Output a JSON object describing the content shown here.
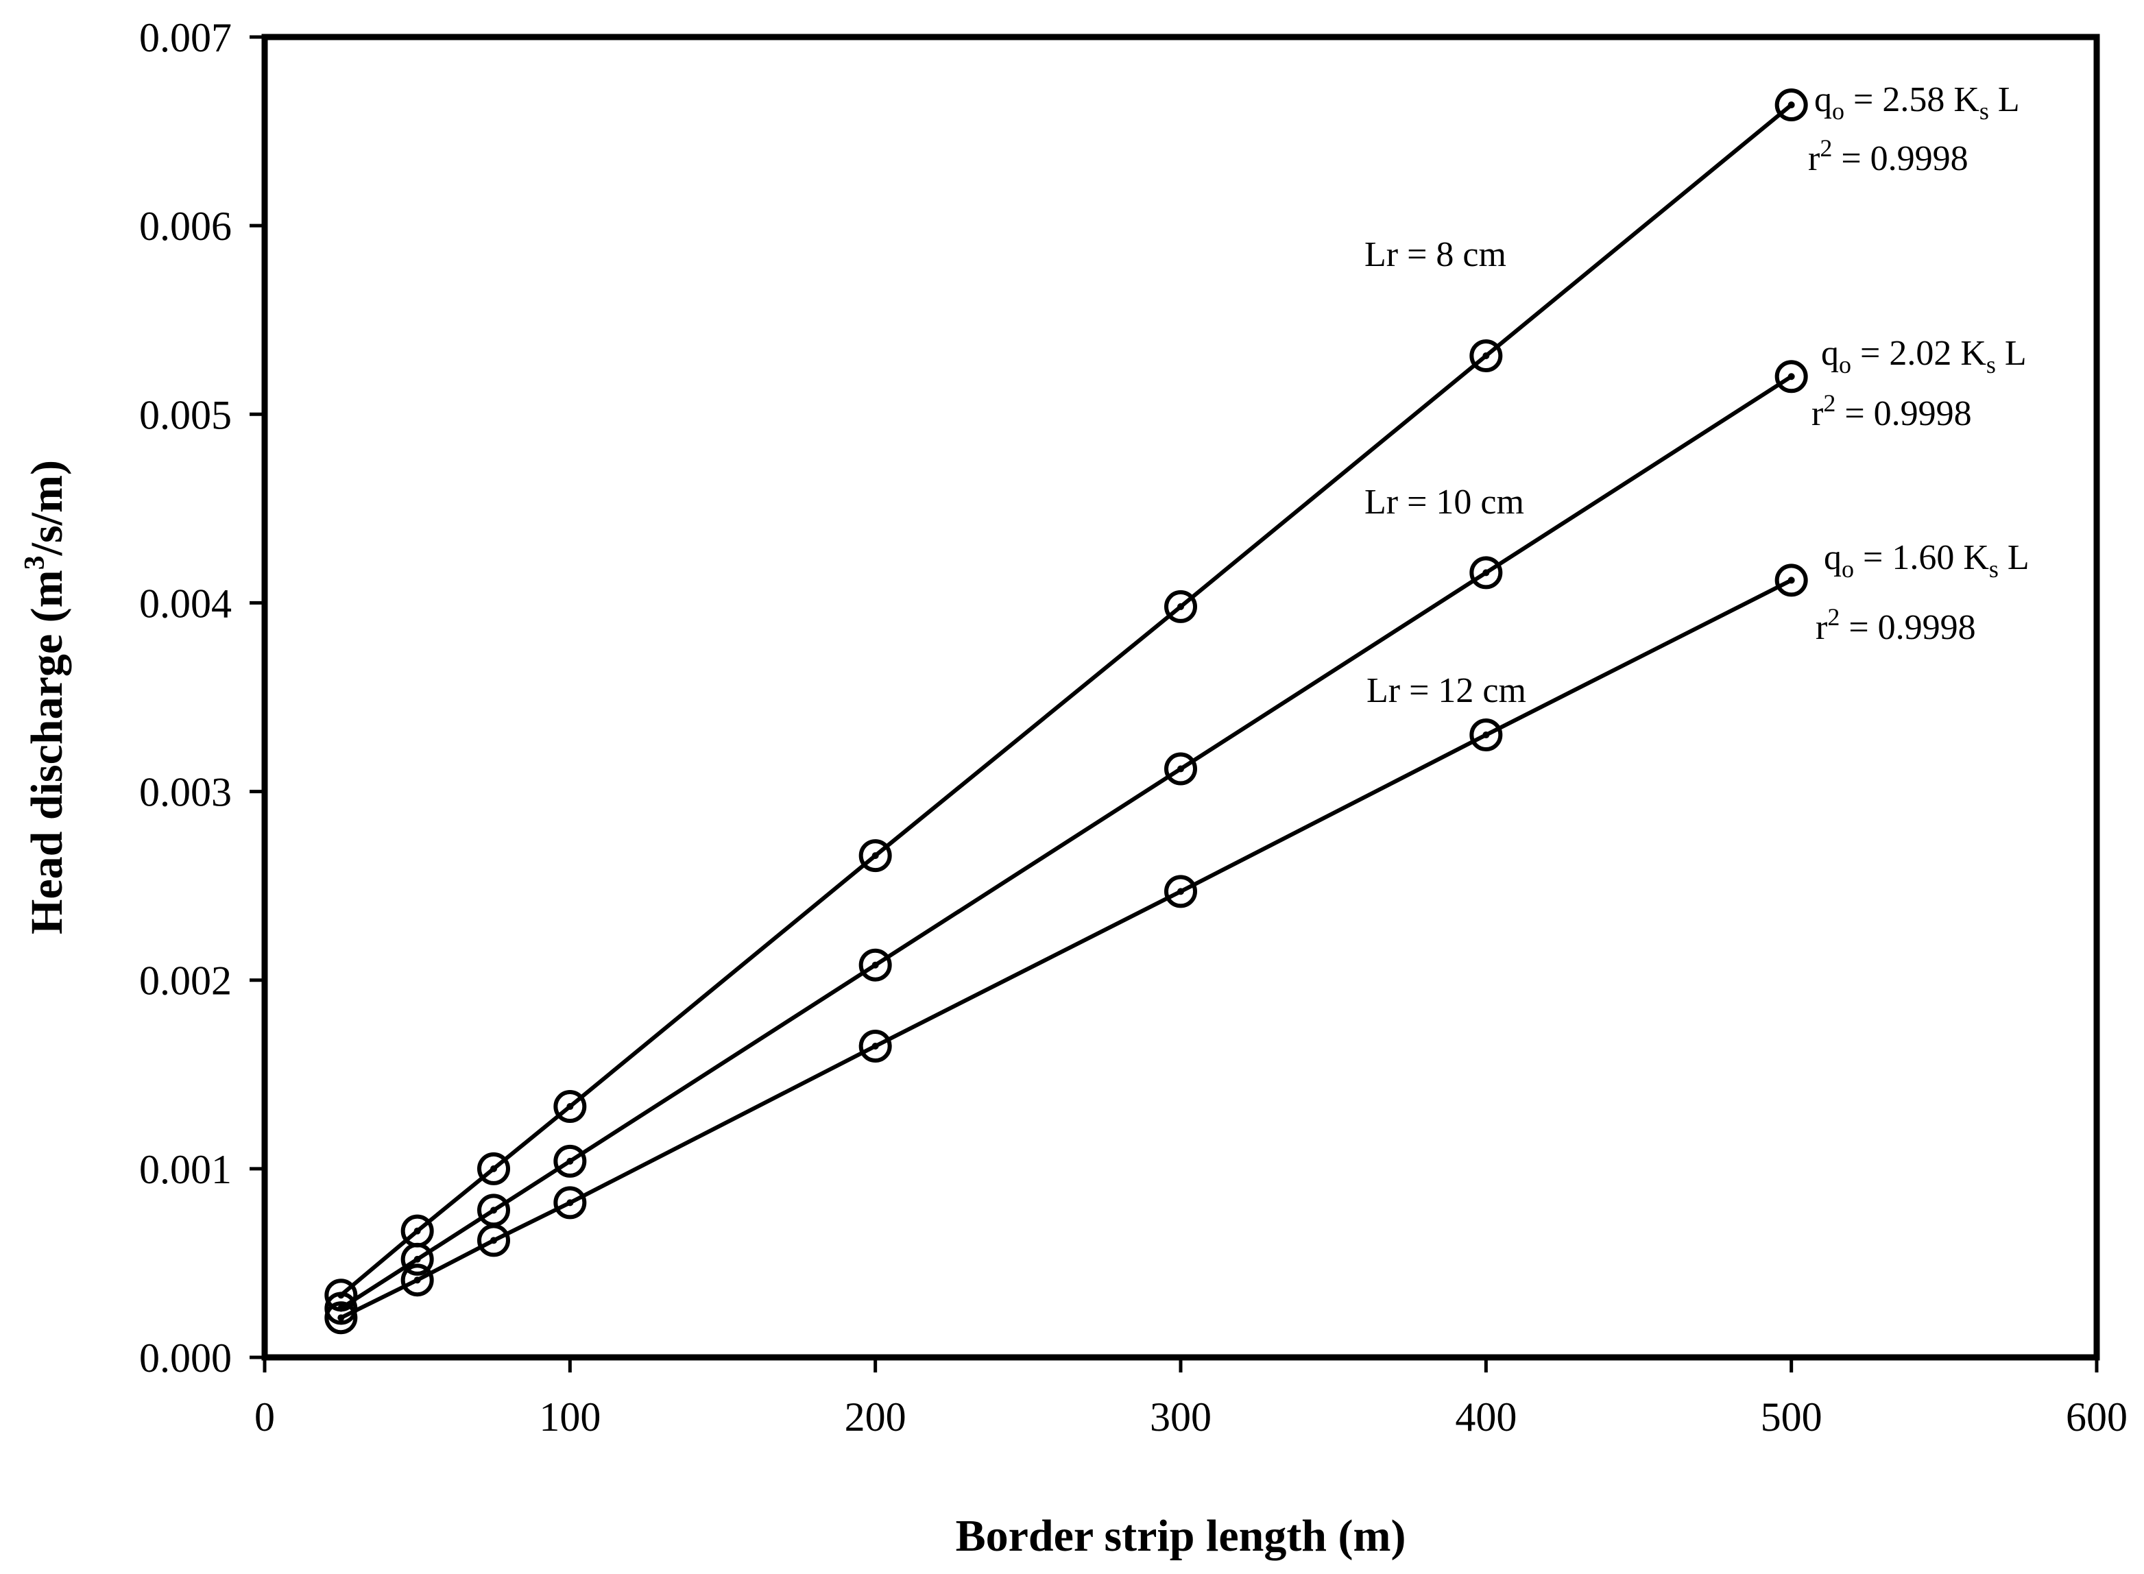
{
  "chart_data": {
    "type": "line",
    "title": "",
    "xlabel": "Border strip length (m)",
    "ylabel": "Head discharge (m3/s/m)",
    "ylabel_parts": {
      "before": "Head discharge (m",
      "sup": "3",
      "after": "/s/m)"
    },
    "xlim": [
      0,
      600
    ],
    "ylim": [
      0.0,
      0.007
    ],
    "x_ticks": [
      0,
      100,
      200,
      300,
      400,
      500,
      600
    ],
    "x_tick_labels": [
      "0",
      "100",
      "200",
      "300",
      "400",
      "500",
      "600"
    ],
    "y_ticks": [
      0.0,
      0.001,
      0.002,
      0.003,
      0.004,
      0.005,
      0.006,
      0.007
    ],
    "y_tick_labels": [
      "0.000",
      "0.001",
      "0.002",
      "0.003",
      "0.004",
      "0.005",
      "0.006",
      "0.007"
    ],
    "grid": false,
    "x": [
      25,
      50,
      75,
      100,
      200,
      300,
      400,
      500
    ],
    "series": [
      {
        "label": "Lr = 8 cm",
        "values": [
          0.00033,
          0.00067,
          0.001,
          0.00133,
          0.00266,
          0.00398,
          0.00531,
          0.00664
        ],
        "equation": {
          "q": "q",
          "q_sub": "o",
          "coef": " = 2.58 K",
          "k_sub": "s",
          "tail": " L"
        },
        "r2": {
          "r": "r",
          "sup": "2",
          "rest": " = 0.9998"
        }
      },
      {
        "label": "Lr = 10 cm",
        "values": [
          0.00026,
          0.00052,
          0.00078,
          0.00104,
          0.00208,
          0.00312,
          0.00416,
          0.0052
        ],
        "equation": {
          "q": "q",
          "q_sub": "o",
          "coef": " = 2.02 K",
          "k_sub": "s",
          "tail": " L"
        },
        "r2": {
          "r": "r",
          "sup": "2",
          "rest": " = 0.9998"
        }
      },
      {
        "label": "Lr = 12 cm",
        "values": [
          0.00021,
          0.00041,
          0.00062,
          0.00082,
          0.00165,
          0.00247,
          0.0033,
          0.00412
        ],
        "equation": {
          "q": "q",
          "q_sub": "o",
          "coef": " = 1.60 K",
          "k_sub": "s",
          "tail": " L"
        },
        "r2": {
          "r": "r",
          "sup": "2",
          "rest": " = 0.9998"
        }
      }
    ],
    "colors": {
      "line": "#000000",
      "background": "#ffffff"
    }
  }
}
